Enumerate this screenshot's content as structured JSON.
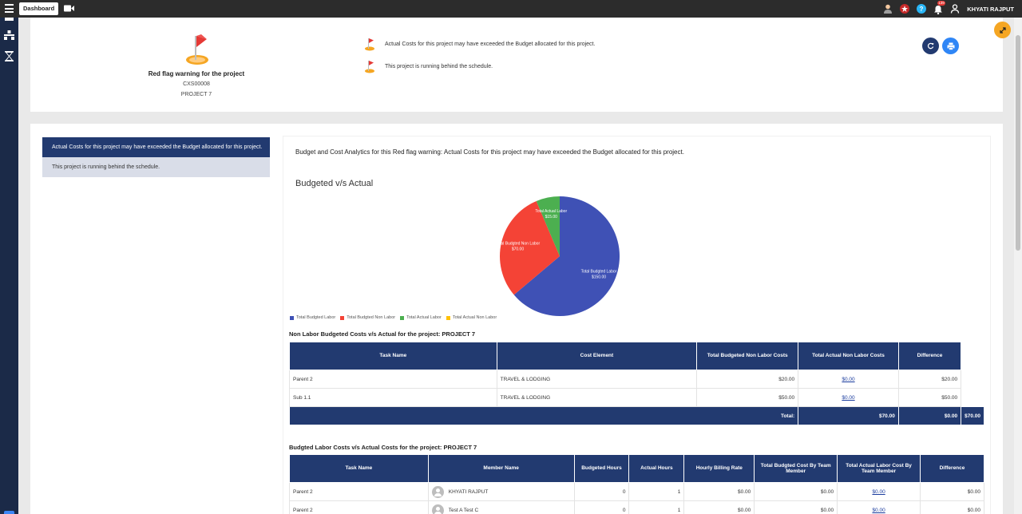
{
  "topbar": {
    "dashboard_label": "Dashboard",
    "notification_count": "139",
    "username": "KHYATI RAJPUT"
  },
  "header": {
    "flag_title": "Red flag warning for the project",
    "project_code": "CXS00008",
    "project_name": "PROJECT 7",
    "warnings": [
      "Actual Costs for this project may have exceeded the Budget allocated for this project.",
      "This project is running behind the schedule."
    ]
  },
  "warning_list": [
    "Actual Costs for this project may have exceeded the Budget allocated for this project.",
    "This project is running behind the schedule."
  ],
  "analytics": {
    "panel_title": "Budget and Cost Analytics for this Red flag warning: Actual Costs for this project may have exceeded the Budget allocated for this project.",
    "chart_title": "Budgeted v/s Actual"
  },
  "chart_data": {
    "type": "pie",
    "title": "Budgeted v/s Actual",
    "legend_position": "bottom-left",
    "slices": [
      {
        "label": "Total Budgted Labor",
        "value": 150.0,
        "display": "$150.00",
        "color": "#3f51b5"
      },
      {
        "label": "Total Budgted Non Labor",
        "value": 70.0,
        "display": "$70.00",
        "color": "#f44336"
      },
      {
        "label": "Total Actual Labor",
        "value": 15.0,
        "display": "$15.00",
        "color": "#4caf50"
      },
      {
        "label": "Total Actual Non Labor",
        "value": 0,
        "display": "$0.00",
        "color": "#ffc107"
      }
    ]
  },
  "non_labor": {
    "title": "Non Labor Budgeted Costs v/s Actual for the project: PROJECT 7",
    "headers": [
      "Task Name",
      "Cost Element",
      "Total Budgeted Non Labor Costs",
      "Total Actual Non Labor Costs",
      "Difference"
    ],
    "rows": [
      {
        "task": "Parent 2",
        "element": "TRAVEL & LODGING",
        "budget": "$20.00",
        "actual": "$0.00",
        "diff": "$20.00"
      },
      {
        "task": "Sub 1.1",
        "element": "TRAVEL & LODGING",
        "budget": "$50.00",
        "actual": "$0.00",
        "diff": "$50.00"
      }
    ],
    "total": {
      "label": "Total:",
      "budget": "$70.00",
      "actual": "$0.00",
      "diff": "$70.00"
    }
  },
  "labor": {
    "title": "Budgted Labor Costs v/s Actual Costs for the project: PROJECT 7",
    "headers": [
      "Task Name",
      "Member Name",
      "Budgeted Hours",
      "Actual Hours",
      "Hourly Billing Rate",
      "Total Budgted Cost By Team Member",
      "Total Actual Labor Cost By Team Member",
      "Difference"
    ],
    "rows": [
      {
        "task": "Parent 2",
        "member": "KHYATI RAJPUT",
        "bhours": "0",
        "ahours": "1",
        "rate": "$0.00",
        "bcost": "$0.00",
        "acost": "$0.00",
        "diff": "$0.00"
      },
      {
        "task": "Parent 2",
        "member": "Test A Test C",
        "bhours": "0",
        "ahours": "1",
        "rate": "$0.00",
        "bcost": "$0.00",
        "acost": "$0.00",
        "diff": "$0.00"
      }
    ]
  }
}
